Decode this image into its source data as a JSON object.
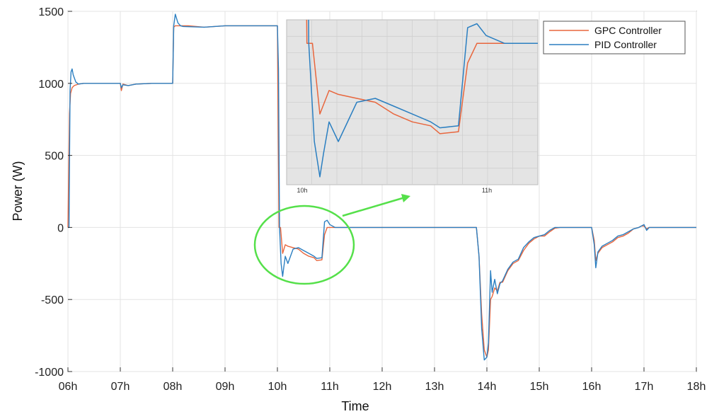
{
  "chart_data": {
    "type": "line",
    "xlabel": "Time",
    "ylabel": "Power (W)",
    "xlim": [
      6,
      18
    ],
    "ylim": [
      -1000,
      1500
    ],
    "x_ticks": [
      6,
      7,
      8,
      9,
      10,
      11,
      12,
      13,
      14,
      15,
      16,
      17,
      18
    ],
    "x_tick_labels": [
      "06h",
      "07h",
      "08h",
      "09h",
      "10h",
      "11h",
      "12h",
      "13h",
      "14h",
      "15h",
      "16h",
      "17h",
      "18h"
    ],
    "y_ticks": [
      -1000,
      -500,
      0,
      500,
      1000,
      1500
    ],
    "y_tick_labels": [
      "-1000",
      "-500",
      "0",
      "500",
      "1000",
      "1500"
    ],
    "grid": true,
    "legend_position": "top-right",
    "colors": {
      "gpc": "#e8663d",
      "pid": "#2b7fc1",
      "highlight": "#55e04a",
      "inset_bg": "#e4e4e4"
    },
    "series": [
      {
        "name": "GPC Controller",
        "x": [
          6.0,
          6.03,
          6.05,
          6.08,
          6.12,
          6.2,
          6.3,
          6.5,
          7.0,
          7.02,
          7.05,
          7.15,
          7.3,
          7.6,
          8.0,
          8.02,
          8.05,
          8.3,
          8.6,
          9.0,
          9.5,
          9.95,
          10.0,
          10.03,
          10.06,
          10.1,
          10.15,
          10.2,
          10.3,
          10.4,
          10.5,
          10.6,
          10.7,
          10.75,
          10.85,
          10.9,
          10.95,
          11.0,
          11.5,
          12.0,
          13.0,
          13.8,
          13.85,
          13.9,
          13.95,
          14.0,
          14.03,
          14.07,
          14.1,
          14.15,
          14.2,
          14.25,
          14.3,
          14.4,
          14.5,
          14.6,
          14.7,
          14.8,
          14.9,
          15.0,
          15.1,
          15.2,
          15.3,
          15.4,
          15.6,
          15.8,
          16.0,
          16.05,
          16.08,
          16.12,
          16.2,
          16.3,
          16.4,
          16.5,
          16.6,
          16.7,
          16.8,
          16.9,
          16.95,
          17.0,
          17.05,
          17.1,
          17.2,
          17.5,
          18.0
        ],
        "y": [
          0,
          790,
          930,
          970,
          985,
          995,
          1000,
          1000,
          1000,
          950,
          995,
          985,
          995,
          1000,
          1000,
          1390,
          1400,
          1400,
          1390,
          1400,
          1400,
          1400,
          1400,
          0,
          0,
          -180,
          -120,
          -130,
          -140,
          -150,
          -180,
          -200,
          -210,
          -230,
          -225,
          -50,
          0,
          0,
          0,
          0,
          0,
          0,
          -200,
          -600,
          -850,
          -900,
          -850,
          -500,
          -480,
          -420,
          -440,
          -380,
          -380,
          -300,
          -250,
          -230,
          -160,
          -110,
          -80,
          -60,
          -60,
          -30,
          -5,
          0,
          0,
          0,
          0,
          -90,
          -230,
          -180,
          -140,
          -120,
          -100,
          -70,
          -60,
          -40,
          -10,
          0,
          10,
          10,
          -10,
          0,
          0,
          0,
          0
        ]
      },
      {
        "name": "PID Controller",
        "x": [
          6.0,
          6.02,
          6.04,
          6.06,
          6.08,
          6.1,
          6.15,
          6.2,
          6.3,
          6.5,
          7.0,
          7.02,
          7.05,
          7.15,
          7.3,
          7.6,
          8.0,
          8.02,
          8.05,
          8.1,
          8.15,
          8.2,
          8.6,
          9.0,
          9.5,
          9.95,
          10.0,
          10.02,
          10.04,
          10.07,
          10.1,
          10.12,
          10.15,
          10.2,
          10.3,
          10.4,
          10.5,
          10.6,
          10.7,
          10.75,
          10.85,
          10.9,
          10.95,
          11.0,
          11.1,
          11.5,
          12.0,
          13.0,
          13.8,
          13.85,
          13.9,
          13.95,
          14.0,
          14.03,
          14.07,
          14.1,
          14.15,
          14.2,
          14.25,
          14.3,
          14.4,
          14.5,
          14.6,
          14.7,
          14.8,
          14.9,
          15.0,
          15.1,
          15.2,
          15.3,
          15.4,
          15.6,
          15.8,
          16.0,
          16.05,
          16.08,
          16.12,
          16.2,
          16.3,
          16.4,
          16.5,
          16.6,
          16.7,
          16.8,
          16.9,
          16.95,
          17.0,
          17.05,
          17.1,
          17.2,
          17.5,
          18.0
        ],
        "y": [
          0,
          0,
          950,
          1080,
          1100,
          1060,
          1010,
          995,
          1000,
          1000,
          1000,
          970,
          990,
          985,
          995,
          1000,
          1000,
          1400,
          1480,
          1420,
          1400,
          1395,
          1390,
          1400,
          1400,
          1400,
          1400,
          1100,
          0,
          -250,
          -340,
          -280,
          -200,
          -250,
          -150,
          -140,
          -160,
          -180,
          -200,
          -215,
          -210,
          40,
          50,
          20,
          0,
          0,
          0,
          0,
          0,
          -200,
          -700,
          -920,
          -900,
          -800,
          -300,
          -450,
          -360,
          -460,
          -390,
          -370,
          -290,
          -240,
          -220,
          -140,
          -100,
          -70,
          -60,
          -50,
          -20,
          0,
          0,
          0,
          0,
          0,
          -120,
          -280,
          -170,
          -130,
          -110,
          -90,
          -60,
          -50,
          -30,
          -10,
          0,
          10,
          20,
          -20,
          0,
          0,
          0,
          0
        ]
      }
    ],
    "inset": {
      "x_tick_labels": [
        "10h",
        "11h"
      ]
    }
  }
}
